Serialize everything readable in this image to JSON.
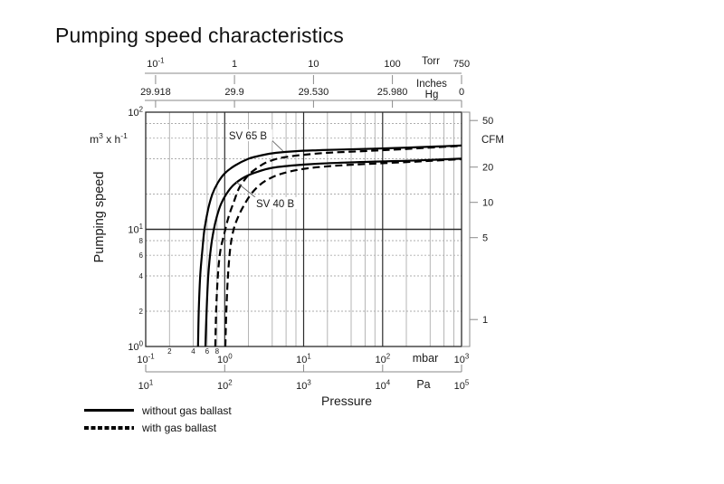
{
  "page": {
    "title": "Pumping speed characteristics"
  },
  "legend": {
    "items": [
      {
        "label": "without gas ballast",
        "style": "solid"
      },
      {
        "label": "with gas ballast",
        "style": "dashed"
      }
    ]
  },
  "colors": {
    "background": "#ffffff",
    "text": "#1a1a1a",
    "curve": "#000000",
    "grid_major": "#2b2b2b",
    "grid_minor": "#adadad",
    "axis_secondary": "#8a8a8a",
    "leader_line": "#666666"
  },
  "chart_data": {
    "type": "line",
    "title": "Pumping speed characteristics",
    "x_scale": "log",
    "y_scale": "log",
    "x_range_mbar": [
      0.1,
      1000
    ],
    "y_range_m3h": [
      1,
      100
    ],
    "grid": "log grid, minor lines at 2-4-6-8 per decade",
    "xlabel": "Pressure",
    "axes": {
      "top_torr": {
        "unit": "Torr",
        "ticks": [
          {
            "label": "10^-1",
            "torr": 0.1
          },
          {
            "label": "1",
            "torr": 1
          },
          {
            "label": "10",
            "torr": 10
          },
          {
            "label": "100",
            "torr": 100
          },
          {
            "label": "750",
            "torr": 750
          }
        ]
      },
      "top_inches_hg": {
        "unit_line1": "Inches",
        "unit_line2": "Hg",
        "ticks": [
          {
            "label": "29.918",
            "torr": 0.1
          },
          {
            "label": "29.9",
            "torr": 1
          },
          {
            "label": "29.530",
            "torr": 10
          },
          {
            "label": "25.980",
            "torr": 100
          },
          {
            "label": "0",
            "torr": 750
          }
        ]
      },
      "bottom_mbar": {
        "unit": "mbar",
        "ticks": [
          {
            "label": "10^-1",
            "mbar": 0.1
          },
          {
            "label": "10^0",
            "mbar": 1
          },
          {
            "label": "10^1",
            "mbar": 10
          },
          {
            "label": "10^2",
            "mbar": 100
          },
          {
            "label": "10^3",
            "mbar": 1000
          }
        ],
        "minor_labels": [
          {
            "label": "2",
            "mbar": 0.2
          },
          {
            "label": "4",
            "mbar": 0.4
          },
          {
            "label": "6",
            "mbar": 0.6
          },
          {
            "label": "8",
            "mbar": 0.8
          }
        ]
      },
      "bottom_pa": {
        "unit": "Pa",
        "ticks": [
          {
            "label": "10^1",
            "pa": 10
          },
          {
            "label": "10^2",
            "pa": 100
          },
          {
            "label": "10^3",
            "pa": 1000
          },
          {
            "label": "10^4",
            "pa": 10000
          },
          {
            "label": "10^5",
            "pa": 100000
          }
        ]
      },
      "left": {
        "label": "Pumping speed",
        "unit": "m^3 x h^-1",
        "ticks": [
          {
            "label": "10^0",
            "value": 1
          },
          {
            "label": "10^1",
            "value": 10
          },
          {
            "label": "10^2",
            "value": 100
          }
        ],
        "minor_labels": [
          {
            "label": "2",
            "value": 2
          },
          {
            "label": "4",
            "value": 4
          },
          {
            "label": "6",
            "value": 6
          },
          {
            "label": "8",
            "value": 8
          }
        ]
      },
      "right": {
        "unit": "CFM",
        "ticks": [
          {
            "label": "50",
            "cfm": 50
          },
          {
            "label": "20",
            "cfm": 20
          },
          {
            "label": "10",
            "cfm": 10
          },
          {
            "label": "5",
            "cfm": 5
          },
          {
            "label": "1",
            "cfm": 1
          }
        ]
      }
    },
    "series": [
      {
        "name": "SV 65 B",
        "gas_ballast": false,
        "style": "solid",
        "points_mbar_m3h": [
          [
            0.46,
            1
          ],
          [
            0.47,
            2
          ],
          [
            0.49,
            4
          ],
          [
            0.52,
            6.5
          ],
          [
            0.555,
            10
          ],
          [
            0.62,
            15
          ],
          [
            0.7,
            20
          ],
          [
            0.82,
            25
          ],
          [
            1.0,
            30
          ],
          [
            1.35,
            35
          ],
          [
            2.0,
            40
          ],
          [
            3.0,
            43
          ],
          [
            4.5,
            45
          ],
          [
            8,
            46.5
          ],
          [
            15,
            47.3
          ],
          [
            30,
            48
          ],
          [
            80,
            48.8
          ],
          [
            200,
            49.8
          ],
          [
            500,
            51
          ],
          [
            1000,
            52
          ]
        ]
      },
      {
        "name": "SV 65 B",
        "gas_ballast": true,
        "style": "dashed",
        "points_mbar_m3h": [
          [
            0.76,
            1
          ],
          [
            0.78,
            2
          ],
          [
            0.82,
            4
          ],
          [
            0.88,
            6.5
          ],
          [
            1.0,
            9.5
          ],
          [
            1.13,
            13
          ],
          [
            1.3,
            17
          ],
          [
            1.5,
            22
          ],
          [
            1.75,
            26
          ],
          [
            2.1,
            30
          ],
          [
            2.6,
            33.5
          ],
          [
            3.3,
            37
          ],
          [
            4.6,
            40
          ],
          [
            6.5,
            41.8
          ],
          [
            10,
            43.3
          ],
          [
            20,
            45
          ],
          [
            50,
            46.3
          ],
          [
            120,
            47.6
          ],
          [
            300,
            49.3
          ],
          [
            600,
            50.6
          ],
          [
            1000,
            51.6
          ]
        ]
      },
      {
        "name": "SV 40 B",
        "gas_ballast": false,
        "style": "solid",
        "points_mbar_m3h": [
          [
            0.57,
            1
          ],
          [
            0.59,
            2
          ],
          [
            0.62,
            4
          ],
          [
            0.67,
            7
          ],
          [
            0.73,
            10
          ],
          [
            0.8,
            13
          ],
          [
            0.9,
            16.5
          ],
          [
            1.05,
            20
          ],
          [
            1.3,
            24
          ],
          [
            1.8,
            28
          ],
          [
            2.6,
            31
          ],
          [
            4,
            33.5
          ],
          [
            7,
            35
          ],
          [
            15,
            36.3
          ],
          [
            40,
            37.3
          ],
          [
            100,
            38
          ],
          [
            300,
            38.8
          ],
          [
            1000,
            40.2
          ]
        ]
      },
      {
        "name": "SV 40 B",
        "gas_ballast": true,
        "style": "dashed",
        "points_mbar_m3h": [
          [
            1.02,
            1
          ],
          [
            1.05,
            2
          ],
          [
            1.1,
            4
          ],
          [
            1.18,
            7
          ],
          [
            1.3,
            10
          ],
          [
            1.5,
            13
          ],
          [
            1.75,
            16
          ],
          [
            2.1,
            19.5
          ],
          [
            2.6,
            23
          ],
          [
            3.3,
            26
          ],
          [
            4.5,
            28.8
          ],
          [
            6.5,
            31
          ],
          [
            10,
            32.8
          ],
          [
            18,
            34.3
          ],
          [
            40,
            35.6
          ],
          [
            100,
            36.7
          ],
          [
            300,
            38
          ],
          [
            600,
            39
          ],
          [
            1000,
            39.7
          ]
        ]
      }
    ],
    "annotations": [
      {
        "text": "SV 65 B",
        "text_mbar": 1.13,
        "text_speed": 70,
        "line_from_mbar": 3.62,
        "line_from_speed": 61,
        "line_to_mbar": 5.5,
        "line_to_speed": 46.5
      },
      {
        "text": "SV 40 B",
        "text_mbar": 2.5,
        "text_speed": 18.5,
        "line_from_mbar": 2.44,
        "line_from_speed": 18.8,
        "line_to_mbar": 1.4,
        "line_to_speed": 25.4
      }
    ]
  }
}
